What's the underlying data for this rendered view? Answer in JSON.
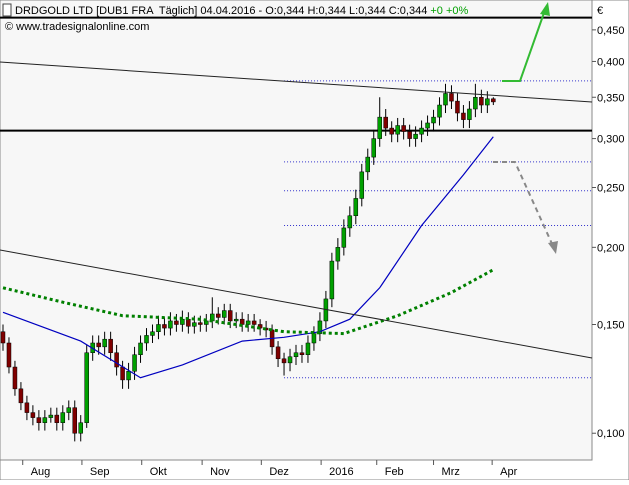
{
  "chart_data": {
    "type": "candlestick",
    "title": "DRDGOLD LTD [DUB1 FRA  Täglich] 04.04.2016 - O:0,344 H:0,344 L:0,344 C:0,344",
    "change": "+0 +0%",
    "source": "© www.tradesignalonline.com",
    "currency": "€",
    "log_scale": true,
    "ylim": [
      0.0905,
      0.503
    ],
    "yticks": [
      {
        "value": 0.1,
        "label": "0,100"
      },
      {
        "value": 0.15,
        "label": "0,150"
      },
      {
        "value": 0.2,
        "label": "0,200"
      },
      {
        "value": 0.25,
        "label": "0,250"
      },
      {
        "value": 0.3,
        "label": "0,300"
      },
      {
        "value": 0.35,
        "label": "0,350"
      },
      {
        "value": 0.4,
        "label": "0,400"
      },
      {
        "value": 0.45,
        "label": "0,450"
      }
    ],
    "xlim": [
      -0.5,
      98.5
    ],
    "xticks": [
      {
        "value": 3.3,
        "label": "Aug"
      },
      {
        "value": 13.2,
        "label": "Sep"
      },
      {
        "value": 23.2,
        "label": "Okt"
      },
      {
        "value": 33.3,
        "label": "Nov"
      },
      {
        "value": 43.2,
        "label": "Dez"
      },
      {
        "value": 53.2,
        "label": "2016"
      },
      {
        "value": 62.5,
        "label": "Feb"
      },
      {
        "value": 72,
        "label": "Mrz"
      },
      {
        "value": 81.8,
        "label": "Apr"
      }
    ],
    "up_color": "#00a000",
    "down_color": "#800000",
    "open": [
      0.146,
      0.14,
      0.128,
      0.118,
      0.112,
      0.108,
      0.106,
      0.104,
      0.106,
      0.107,
      0.104,
      0.108,
      0.11,
      0.1,
      0.104,
      0.135,
      0.14,
      0.138,
      0.142,
      0.135,
      0.128,
      0.122,
      0.126,
      0.134,
      0.14,
      0.144,
      0.146,
      0.15,
      0.148,
      0.152,
      0.15,
      0.153,
      0.149,
      0.151,
      0.15,
      0.152,
      0.156,
      0.154,
      0.158,
      0.152,
      0.153,
      0.15,
      0.152,
      0.15,
      0.148,
      0.147,
      0.138,
      0.132,
      0.13,
      0.133,
      0.135,
      0.134,
      0.14,
      0.145,
      0.152,
      0.165,
      0.19,
      0.2,
      0.215,
      0.225,
      0.24,
      0.265,
      0.28,
      0.3,
      0.325,
      0.312,
      0.305,
      0.315,
      0.308,
      0.3,
      0.305,
      0.312,
      0.318,
      0.325,
      0.34,
      0.355,
      0.345,
      0.33,
      0.322,
      0.335,
      0.35,
      0.34,
      0.348
    ],
    "high": [
      0.15,
      0.143,
      0.131,
      0.121,
      0.115,
      0.111,
      0.109,
      0.109,
      0.11,
      0.11,
      0.111,
      0.113,
      0.113,
      0.107,
      0.139,
      0.144,
      0.144,
      0.146,
      0.146,
      0.139,
      0.131,
      0.13,
      0.138,
      0.144,
      0.148,
      0.15,
      0.155,
      0.154,
      0.157,
      0.156,
      0.158,
      0.157,
      0.155,
      0.155,
      0.156,
      0.166,
      0.16,
      0.162,
      0.162,
      0.157,
      0.157,
      0.156,
      0.156,
      0.153,
      0.152,
      0.15,
      0.141,
      0.135,
      0.137,
      0.139,
      0.139,
      0.144,
      0.149,
      0.157,
      0.17,
      0.196,
      0.207,
      0.222,
      0.233,
      0.248,
      0.273,
      0.289,
      0.31,
      0.35,
      0.335,
      0.32,
      0.324,
      0.324,
      0.316,
      0.314,
      0.321,
      0.327,
      0.334,
      0.35,
      0.368,
      0.366,
      0.355,
      0.34,
      0.345,
      0.368,
      0.36,
      0.358,
      0.35
    ],
    "low": [
      0.136,
      0.125,
      0.115,
      0.109,
      0.105,
      0.103,
      0.101,
      0.101,
      0.104,
      0.101,
      0.101,
      0.105,
      0.097,
      0.097,
      0.102,
      0.131,
      0.134,
      0.134,
      0.131,
      0.124,
      0.118,
      0.118,
      0.122,
      0.13,
      0.136,
      0.14,
      0.142,
      0.144,
      0.144,
      0.146,
      0.146,
      0.145,
      0.145,
      0.146,
      0.146,
      0.148,
      0.15,
      0.15,
      0.148,
      0.148,
      0.146,
      0.146,
      0.146,
      0.144,
      0.143,
      0.134,
      0.128,
      0.124,
      0.126,
      0.129,
      0.13,
      0.13,
      0.136,
      0.141,
      0.148,
      0.16,
      0.184,
      0.194,
      0.208,
      0.218,
      0.233,
      0.257,
      0.272,
      0.291,
      0.303,
      0.296,
      0.296,
      0.299,
      0.291,
      0.291,
      0.296,
      0.303,
      0.308,
      0.315,
      0.33,
      0.335,
      0.32,
      0.312,
      0.312,
      0.325,
      0.33,
      0.33,
      0.34
    ],
    "close": [
      0.14,
      0.128,
      0.118,
      0.112,
      0.108,
      0.106,
      0.104,
      0.106,
      0.107,
      0.104,
      0.108,
      0.11,
      0.1,
      0.104,
      0.135,
      0.14,
      0.138,
      0.142,
      0.135,
      0.128,
      0.122,
      0.126,
      0.134,
      0.14,
      0.144,
      0.146,
      0.15,
      0.148,
      0.152,
      0.15,
      0.153,
      0.149,
      0.151,
      0.15,
      0.152,
      0.156,
      0.154,
      0.158,
      0.152,
      0.153,
      0.15,
      0.152,
      0.15,
      0.148,
      0.147,
      0.138,
      0.132,
      0.13,
      0.133,
      0.135,
      0.134,
      0.14,
      0.145,
      0.152,
      0.165,
      0.19,
      0.2,
      0.215,
      0.225,
      0.24,
      0.265,
      0.28,
      0.3,
      0.325,
      0.312,
      0.305,
      0.315,
      0.308,
      0.3,
      0.305,
      0.312,
      0.318,
      0.325,
      0.34,
      0.355,
      0.345,
      0.33,
      0.322,
      0.335,
      0.35,
      0.34,
      0.348,
      0.344
    ],
    "lines": [
      {
        "color": "#0000c0",
        "style": "solid",
        "x": [
          0,
          13,
          23,
          30,
          40,
          47,
          53,
          58,
          63,
          70,
          77,
          82
        ],
        "values": [
          0.157,
          0.141,
          0.123,
          0.129,
          0.141,
          0.143,
          0.146,
          0.153,
          0.172,
          0.217,
          0.262,
          0.302
        ]
      },
      {
        "color": "#008000",
        "style": "dotted",
        "x": [
          0,
          10,
          20,
          33,
          47,
          57,
          66,
          75,
          82
        ],
        "values": [
          0.172,
          0.163,
          0.155,
          0.153,
          0.146,
          0.145,
          0.155,
          0.169,
          0.184
        ]
      }
    ],
    "levels": [
      {
        "value": 0.471,
        "style": "solid",
        "from": -0.5
      },
      {
        "value": 0.309,
        "style": "solid",
        "from": -0.5
      },
      {
        "value": 0.372,
        "style": "dotted",
        "from": 47
      },
      {
        "value": 0.275,
        "style": "dotted",
        "from": 47
      },
      {
        "value": 0.247,
        "style": "dotted",
        "from": 47
      },
      {
        "value": 0.217,
        "style": "dotted",
        "from": 47
      },
      {
        "value": 0.123,
        "style": "dotted",
        "from": 47
      }
    ]
  }
}
